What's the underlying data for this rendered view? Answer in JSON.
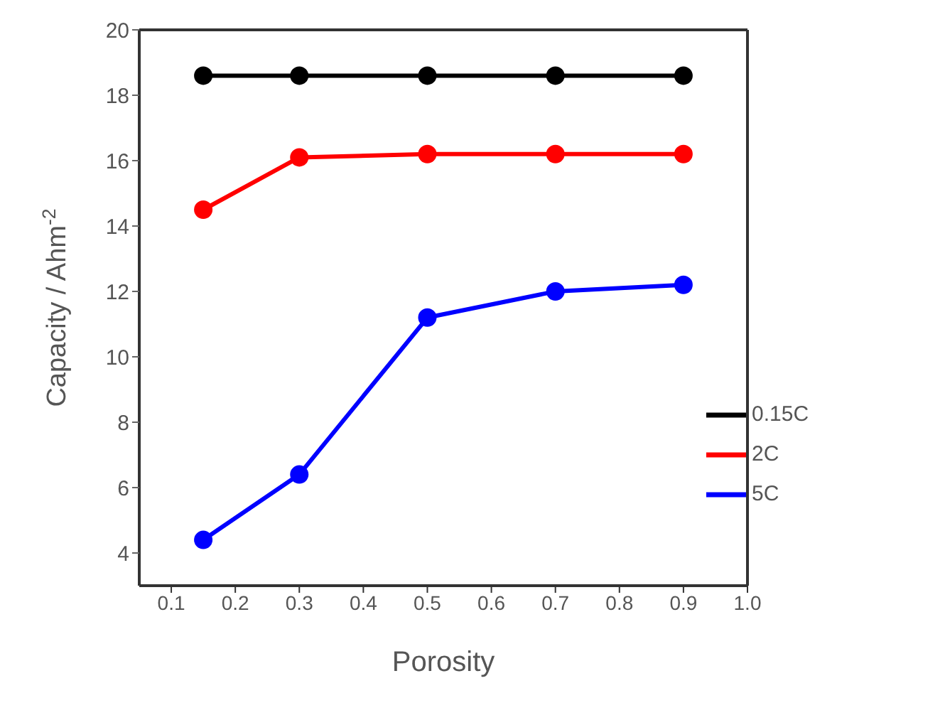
{
  "chart_data": {
    "type": "line",
    "xlabel": "Porosity",
    "ylabel": "Capacity / Ahm$^{-2}$",
    "x": [
      0.15,
      0.3,
      0.5,
      0.7,
      0.9
    ],
    "series": [
      {
        "name": "0.15C",
        "color": "#000000",
        "values": [
          18.6,
          18.6,
          18.6,
          18.6,
          18.6
        ]
      },
      {
        "name": "2C",
        "color": "#ff0000",
        "values": [
          14.5,
          16.1,
          16.2,
          16.2,
          16.2
        ]
      },
      {
        "name": "5C",
        "color": "#0000ff",
        "values": [
          4.4,
          6.4,
          11.2,
          12.0,
          12.2
        ]
      }
    ],
    "xlim": [
      0.05,
      1.0
    ],
    "xticks": [
      {
        "value": 0.1,
        "label": "0.1"
      },
      {
        "value": 0.2,
        "label": "0.2"
      },
      {
        "value": 0.3,
        "label": "0.3"
      },
      {
        "value": 0.4,
        "label": "0.4"
      },
      {
        "value": 0.5,
        "label": "0.5"
      },
      {
        "value": 0.6,
        "label": "0.6"
      },
      {
        "value": 0.7,
        "label": "0.7"
      },
      {
        "value": 0.8,
        "label": "0.8"
      },
      {
        "value": 0.9,
        "label": "0.9"
      },
      {
        "value": 1.0,
        "label": "1.0"
      }
    ],
    "ylim": [
      3,
      20
    ],
    "yticks": [
      4,
      6,
      8,
      10,
      12,
      14,
      16,
      18,
      20
    ],
    "legend": "right",
    "marker": "circle",
    "line_style": "solid",
    "grid": false
  }
}
